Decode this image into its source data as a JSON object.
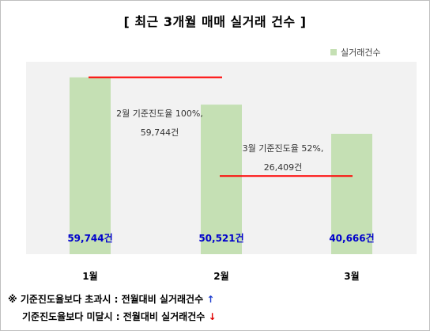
{
  "chart_data": {
    "type": "bar",
    "title": "[ 최근 3개월 매매 실거래 건수 ]",
    "categories": [
      "1월",
      "2월",
      "3월"
    ],
    "series": [
      {
        "name": "실거래건수",
        "values": [
          59744,
          50521,
          40666
        ],
        "color": "#c5e0b4"
      }
    ],
    "data_labels": [
      "59,744건",
      "50,521건",
      "40,666건"
    ],
    "data_label_color": "#0000cc",
    "ylim": [
      0,
      65000
    ],
    "grid": false,
    "legend": "top-right",
    "annotations": [
      {
        "line1": "2월 기준진도율 100%,",
        "line2": "59,744건",
        "reference_value": 59744,
        "line_color": "#ff0000",
        "span": [
          "1월",
          "2월"
        ]
      },
      {
        "line1": "3월 기준진도율 52%,",
        "line2": "26,409건",
        "reference_value": 26409,
        "line_color": "#ff0000",
        "span": [
          "2월",
          "3월"
        ]
      }
    ]
  },
  "notes": {
    "line1_prefix": "※ 기준진도율보다 초과시 : 전월대비 실거래건수",
    "line1_arrow": "↑",
    "line2_prefix": "기준진도율보다 미달시 : 전월대비 실거래건수",
    "line2_arrow": "↓"
  }
}
